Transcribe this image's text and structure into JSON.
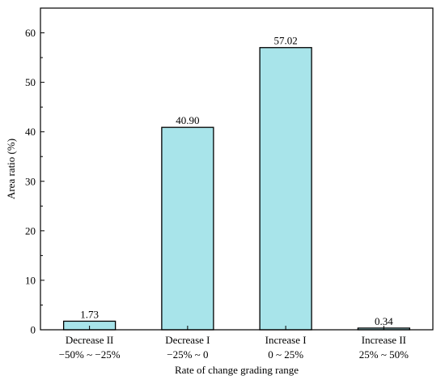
{
  "chart_data": {
    "type": "bar",
    "title": "",
    "xlabel": "Rate of change grading range",
    "ylabel": "Area ratio (%)",
    "ylim": [
      0,
      65
    ],
    "yticks": [
      0,
      10,
      20,
      30,
      40,
      50,
      60
    ],
    "grid": false,
    "categories": [
      {
        "line1": "Decrease II",
        "line2": "−50% ~ −25%"
      },
      {
        "line1": "Decrease I",
        "line2": "−25% ~ 0"
      },
      {
        "line1": "Increase I",
        "line2": "0 ~ 25%"
      },
      {
        "line1": "Increase II",
        "line2": "25% ~ 50%"
      }
    ],
    "values": [
      1.73,
      40.9,
      57.02,
      0.34
    ],
    "value_labels": [
      "1.73",
      "40.90",
      "57.02",
      "0.34"
    ],
    "colors": {
      "bar_fill": "#a8e4ea",
      "bar_stroke": "#000000",
      "axis": "#000000"
    }
  }
}
